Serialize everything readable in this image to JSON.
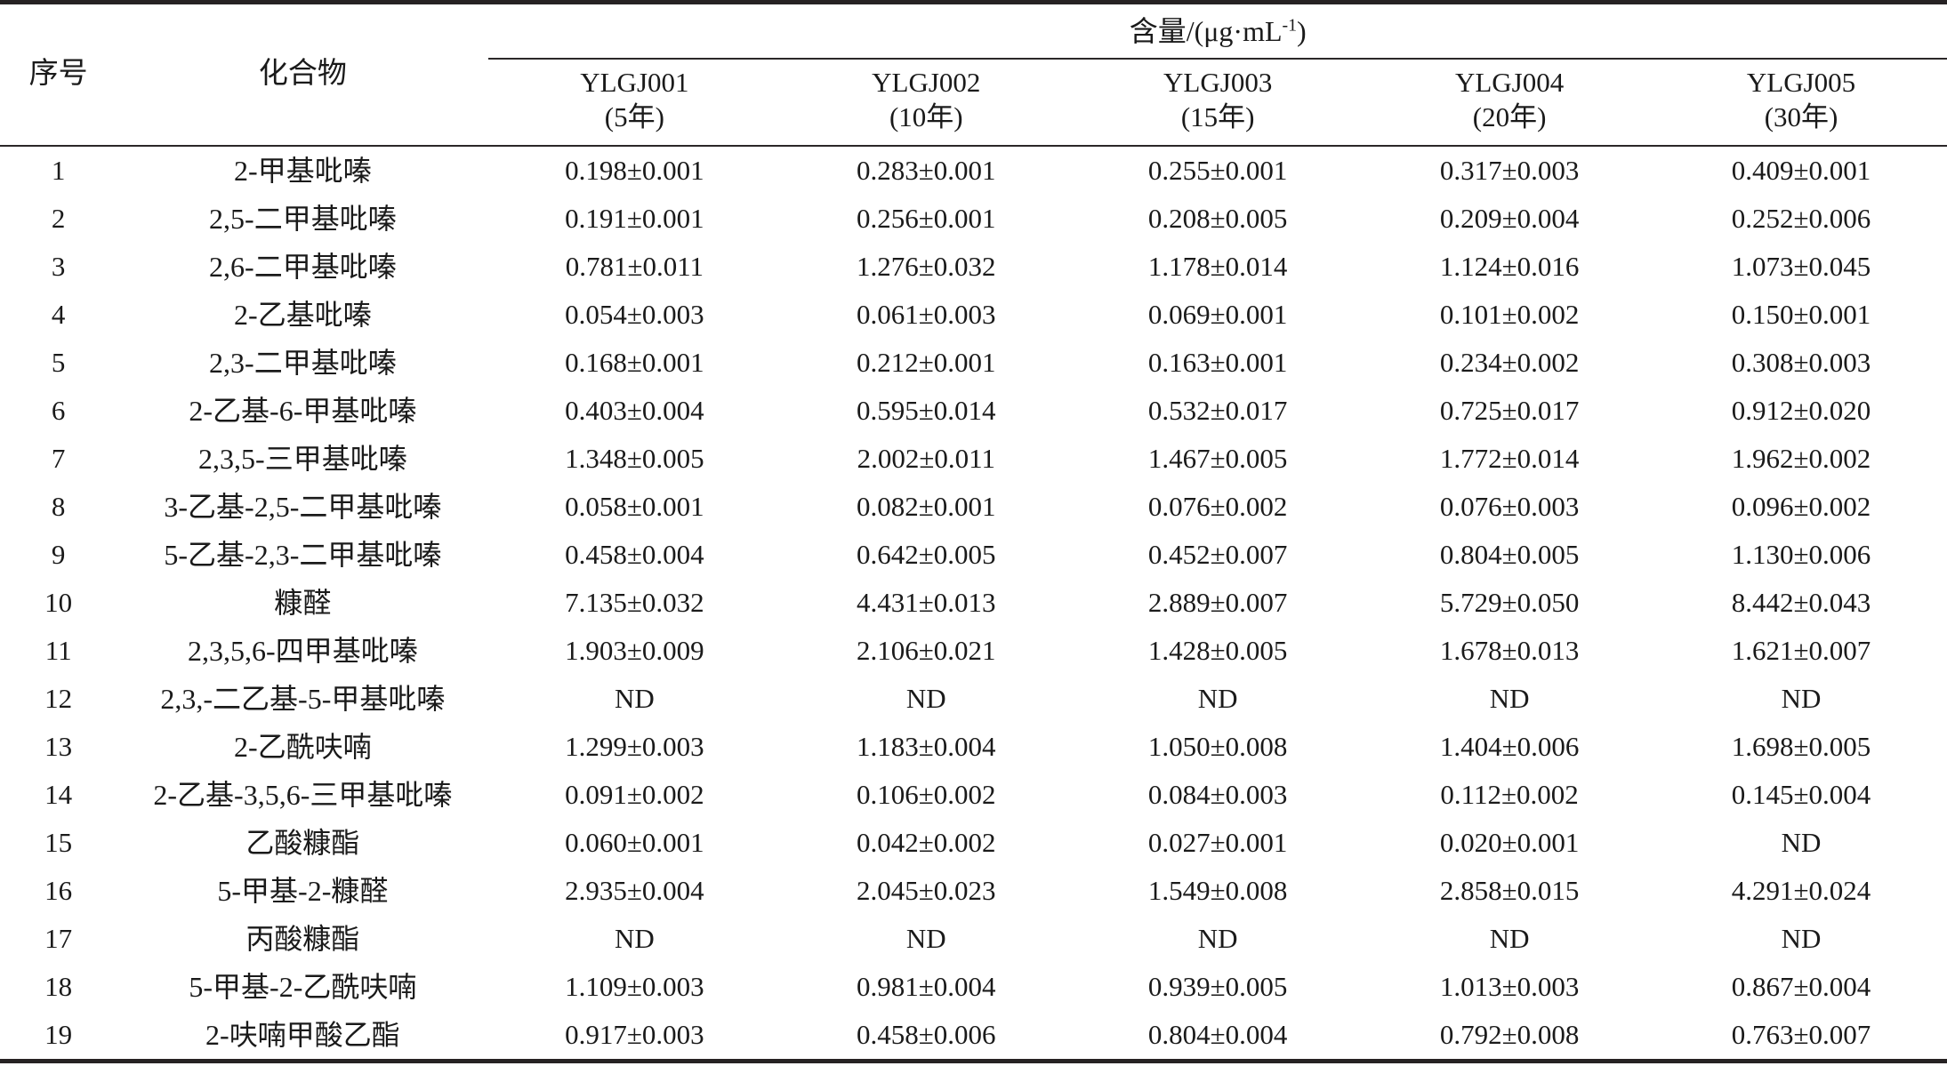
{
  "table": {
    "header": {
      "index_label": "序号",
      "compound_label": "化合物",
      "content_unit_prefix": "含量/(μg·mL",
      "content_unit_sup": "-1",
      "content_unit_suffix": ")",
      "samples": [
        {
          "code": "YLGJ001",
          "year": "(5年)"
        },
        {
          "code": "YLGJ002",
          "year": "(10年)"
        },
        {
          "code": "YLGJ003",
          "year": "(15年)"
        },
        {
          "code": "YLGJ004",
          "year": "(20年)"
        },
        {
          "code": "YLGJ005",
          "year": "(30年)"
        }
      ]
    },
    "rows": [
      {
        "index": "1",
        "compound": "2-甲基吡嗪",
        "values": [
          "0.198±0.001",
          "0.283±0.001",
          "0.255±0.001",
          "0.317±0.003",
          "0.409±0.001"
        ]
      },
      {
        "index": "2",
        "compound": "2,5-二甲基吡嗪",
        "values": [
          "0.191±0.001",
          "0.256±0.001",
          "0.208±0.005",
          "0.209±0.004",
          "0.252±0.006"
        ]
      },
      {
        "index": "3",
        "compound": "2,6-二甲基吡嗪",
        "values": [
          "0.781±0.011",
          "1.276±0.032",
          "1.178±0.014",
          "1.124±0.016",
          "1.073±0.045"
        ]
      },
      {
        "index": "4",
        "compound": "2-乙基吡嗪",
        "values": [
          "0.054±0.003",
          "0.061±0.003",
          "0.069±0.001",
          "0.101±0.002",
          "0.150±0.001"
        ]
      },
      {
        "index": "5",
        "compound": "2,3-二甲基吡嗪",
        "values": [
          "0.168±0.001",
          "0.212±0.001",
          "0.163±0.001",
          "0.234±0.002",
          "0.308±0.003"
        ]
      },
      {
        "index": "6",
        "compound": "2-乙基-6-甲基吡嗪",
        "values": [
          "0.403±0.004",
          "0.595±0.014",
          "0.532±0.017",
          "0.725±0.017",
          "0.912±0.020"
        ]
      },
      {
        "index": "7",
        "compound": "2,3,5-三甲基吡嗪",
        "values": [
          "1.348±0.005",
          "2.002±0.011",
          "1.467±0.005",
          "1.772±0.014",
          "1.962±0.002"
        ]
      },
      {
        "index": "8",
        "compound": "3-乙基-2,5-二甲基吡嗪",
        "values": [
          "0.058±0.001",
          "0.082±0.001",
          "0.076±0.002",
          "0.076±0.003",
          "0.096±0.002"
        ]
      },
      {
        "index": "9",
        "compound": "5-乙基-2,3-二甲基吡嗪",
        "values": [
          "0.458±0.004",
          "0.642±0.005",
          "0.452±0.007",
          "0.804±0.005",
          "1.130±0.006"
        ]
      },
      {
        "index": "10",
        "compound": "糠醛",
        "values": [
          "7.135±0.032",
          "4.431±0.013",
          "2.889±0.007",
          "5.729±0.050",
          "8.442±0.043"
        ]
      },
      {
        "index": "11",
        "compound": "2,3,5,6-四甲基吡嗪",
        "values": [
          "1.903±0.009",
          "2.106±0.021",
          "1.428±0.005",
          "1.678±0.013",
          "1.621±0.007"
        ]
      },
      {
        "index": "12",
        "compound": "2,3,-二乙基-5-甲基吡嗪",
        "values": [
          "ND",
          "ND",
          "ND",
          "ND",
          "ND"
        ]
      },
      {
        "index": "13",
        "compound": "2-乙酰呋喃",
        "values": [
          "1.299±0.003",
          "1.183±0.004",
          "1.050±0.008",
          "1.404±0.006",
          "1.698±0.005"
        ]
      },
      {
        "index": "14",
        "compound": "2-乙基-3,5,6-三甲基吡嗪",
        "values": [
          "0.091±0.002",
          "0.106±0.002",
          "0.084±0.003",
          "0.112±0.002",
          "0.145±0.004"
        ]
      },
      {
        "index": "15",
        "compound": "乙酸糠酯",
        "values": [
          "0.060±0.001",
          "0.042±0.002",
          "0.027±0.001",
          "0.020±0.001",
          "ND"
        ]
      },
      {
        "index": "16",
        "compound": "5-甲基-2-糠醛",
        "values": [
          "2.935±0.004",
          "2.045±0.023",
          "1.549±0.008",
          "2.858±0.015",
          "4.291±0.024"
        ]
      },
      {
        "index": "17",
        "compound": "丙酸糠酯",
        "values": [
          "ND",
          "ND",
          "ND",
          "ND",
          "ND"
        ]
      },
      {
        "index": "18",
        "compound": "5-甲基-2-乙酰呋喃",
        "values": [
          "1.109±0.003",
          "0.981±0.004",
          "0.939±0.005",
          "1.013±0.003",
          "0.867±0.004"
        ]
      },
      {
        "index": "19",
        "compound": "2-呋喃甲酸乙酯",
        "values": [
          "0.917±0.003",
          "0.458±0.006",
          "0.804±0.004",
          "0.792±0.008",
          "0.763±0.007"
        ]
      }
    ]
  }
}
